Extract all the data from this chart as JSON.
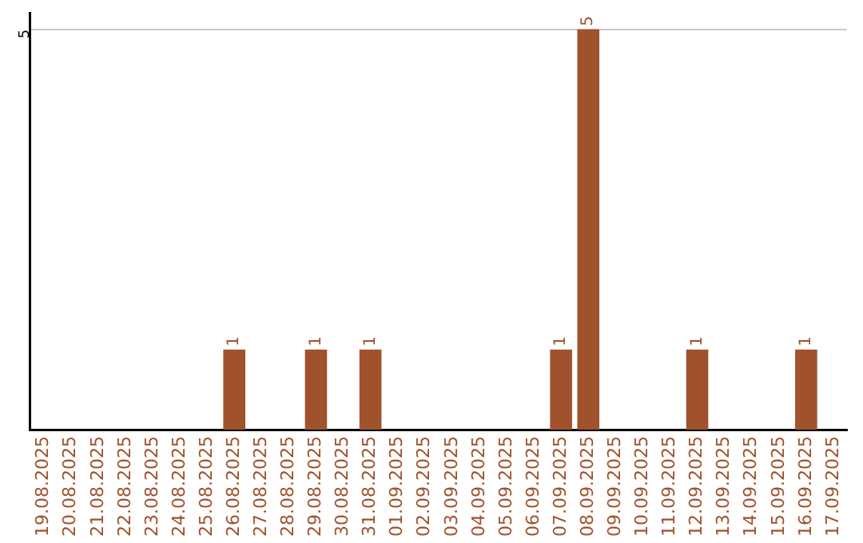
{
  "chart_data": {
    "type": "bar",
    "categories": [
      "19.08.2025",
      "20.08.2025",
      "21.08.2025",
      "22.08.2025",
      "23.08.2025",
      "24.08.2025",
      "25.08.2025",
      "26.08.2025",
      "27.08.2025",
      "28.08.2025",
      "29.08.2025",
      "30.08.2025",
      "31.08.2025",
      "01.09.2025",
      "02.09.2025",
      "03.09.2025",
      "04.09.2025",
      "05.09.2025",
      "06.09.2025",
      "07.09.2025",
      "08.09.2025",
      "09.09.2025",
      "10.09.2025",
      "11.09.2025",
      "12.09.2025",
      "13.09.2025",
      "14.09.2025",
      "15.09.2025",
      "16.09.2025",
      "17.09.2025"
    ],
    "values": [
      0,
      0,
      0,
      0,
      0,
      0,
      0,
      1,
      0,
      0,
      1,
      0,
      1,
      0,
      0,
      0,
      0,
      0,
      0,
      1,
      5,
      0,
      0,
      0,
      1,
      0,
      0,
      0,
      1,
      0
    ],
    "value_labels": [
      null,
      null,
      null,
      null,
      null,
      null,
      null,
      "1",
      null,
      null,
      "1",
      null,
      "1",
      null,
      null,
      null,
      null,
      null,
      null,
      "1",
      "5",
      null,
      null,
      null,
      "1",
      null,
      null,
      null,
      "1",
      null
    ],
    "color": "#a0522d",
    "ylim": [
      0,
      5.2
    ],
    "yticks": [
      5
    ],
    "grid": "y",
    "legend": false
  }
}
